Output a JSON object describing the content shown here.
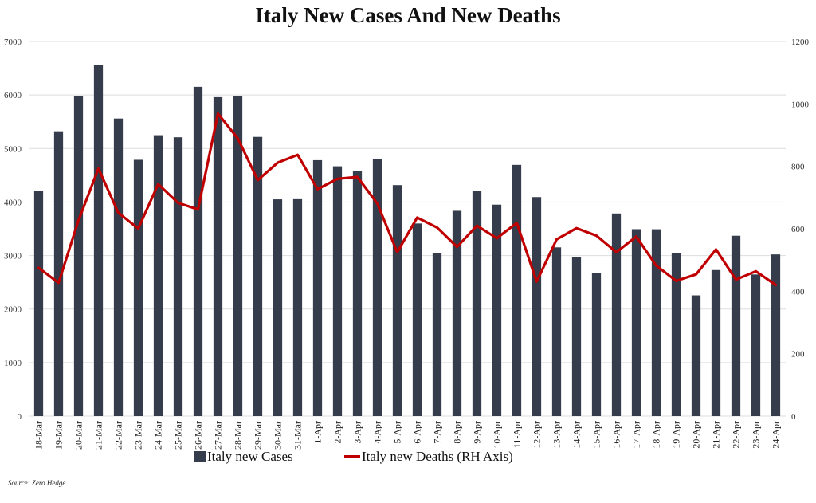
{
  "chart_data": {
    "type": "bar+line",
    "title": "Italy New Cases And New Deaths",
    "categories": [
      "18-Mar",
      "19-Mar",
      "20-Mar",
      "21-Mar",
      "22-Mar",
      "23-Mar",
      "24-Mar",
      "25-Mar",
      "26-Mar",
      "27-Mar",
      "28-Mar",
      "29-Mar",
      "30-Mar",
      "31-Mar",
      "1-Apr",
      "2-Apr",
      "3-Apr",
      "4-Apr",
      "5-Apr",
      "6-Apr",
      "7-Apr",
      "8-Apr",
      "9-Apr",
      "10-Apr",
      "11-Apr",
      "12-Apr",
      "13-Apr",
      "14-Apr",
      "15-Apr",
      "16-Apr",
      "17-Apr",
      "18-Apr",
      "19-Apr",
      "20-Apr",
      "21-Apr",
      "22-Apr",
      "23-Apr",
      "24-Apr"
    ],
    "series": [
      {
        "name": "Italy new Cases",
        "type": "bar",
        "axis": "left",
        "color": "#353d4c",
        "values": [
          4207,
          5322,
          5986,
          6557,
          5560,
          4789,
          5249,
          5210,
          6153,
          5959,
          5974,
          5217,
          4050,
          4053,
          4782,
          4668,
          4585,
          4805,
          4316,
          3599,
          3039,
          3836,
          4204,
          3951,
          4694,
          4092,
          3153,
          2972,
          2667,
          3786,
          3493,
          3491,
          3047,
          2256,
          2729,
          3370,
          2646,
          3021
        ]
      },
      {
        "name": "Italy new Deaths (RH Axis)",
        "type": "line",
        "axis": "right",
        "color": "#c00000",
        "values": [
          475,
          427,
          627,
          793,
          651,
          601,
          743,
          683,
          662,
          969,
          889,
          756,
          812,
          837,
          727,
          760,
          766,
          681,
          525,
          636,
          604,
          542,
          610,
          570,
          619,
          431,
          566,
          602,
          578,
          525,
          575,
          482,
          433,
          454,
          534,
          437,
          464,
          420
        ]
      }
    ],
    "yleft": {
      "min": 0,
      "max": 7000,
      "ticks": [
        0,
        1000,
        2000,
        3000,
        4000,
        5000,
        6000,
        7000
      ]
    },
    "yright": {
      "min": 0,
      "max": 1200,
      "ticks": [
        0,
        200,
        400,
        600,
        800,
        1000,
        1200
      ]
    },
    "grid": "horizontal",
    "legend": "bottom-center"
  },
  "source": "Source: Zero Hedge"
}
